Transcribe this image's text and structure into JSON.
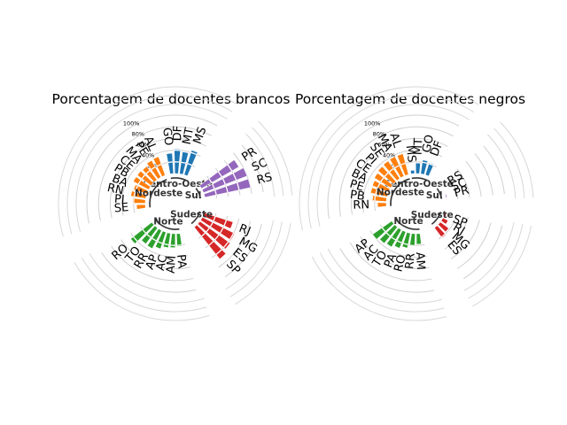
{
  "chart_data": [
    {
      "type": "bar",
      "polar": true,
      "title": "Porcentagem de docentes brancos",
      "rtick_labels": [
        "20%",
        "40%",
        "60%",
        "80%",
        "100%"
      ],
      "rlim": [
        0,
        100
      ],
      "grid": true,
      "regions": [
        {
          "name": "Centro-Oeste",
          "color": "#1f77b4",
          "states": [
            "GO",
            "DF",
            "MT",
            "MS"
          ],
          "values": [
            35,
            42,
            38,
            44
          ]
        },
        {
          "name": "Sul",
          "color": "#9467bd",
          "states": [
            "PR",
            "SC",
            "RS"
          ],
          "values": [
            74,
            80,
            80
          ]
        },
        {
          "name": "Sudeste",
          "color": "#d62728",
          "states": [
            "RJ",
            "MG",
            "ES",
            "SP"
          ],
          "values": [
            52,
            62,
            64,
            70
          ]
        },
        {
          "name": "Norte",
          "color": "#2ca02c",
          "states": [
            "PA",
            "AM",
            "AC",
            "AP",
            "RR",
            "TO",
            "RO"
          ],
          "values": [
            22,
            24,
            25,
            30,
            35,
            34,
            46
          ]
        },
        {
          "name": "Nordeste",
          "color": "#ff7f0e",
          "states": [
            "SE",
            "PI",
            "RN",
            "BA",
            "PB",
            "CE",
            "MA",
            "PE",
            "AL"
          ],
          "values": [
            15,
            22,
            26,
            24,
            30,
            30,
            29,
            33,
            34
          ]
        }
      ]
    },
    {
      "type": "bar",
      "polar": true,
      "title": "Porcentagem de docentes negros",
      "rtick_labels": [
        "20%",
        "40%",
        "60%",
        "80%",
        "100%"
      ],
      "rlim": [
        0,
        100
      ],
      "grid": true,
      "regions": [
        {
          "name": "Centro-Oeste",
          "color": "#1f77b4",
          "states": [
            "MS",
            "MT",
            "GO",
            "DF"
          ],
          "values": [
            6,
            18,
            24,
            22
          ]
        },
        {
          "name": "Sul",
          "color": "#9467bd",
          "states": [
            "RS",
            "SC",
            "PR"
          ],
          "values": [
            1,
            1,
            2
          ]
        },
        {
          "name": "Sudeste",
          "color": "#d62728",
          "states": [
            "SP",
            "RJ",
            "MG",
            "ES"
          ],
          "values": [
            3,
            10,
            18,
            22
          ]
        },
        {
          "name": "Norte",
          "color": "#2ca02c",
          "states": [
            "AM",
            "RR",
            "RO",
            "PA",
            "TO",
            "AC",
            "AP"
          ],
          "values": [
            18,
            20,
            26,
            30,
            34,
            36,
            40
          ]
        },
        {
          "name": "Nordeste",
          "color": "#ff7f0e",
          "states": [
            "RN",
            "PB",
            "PE",
            "BA",
            "CE",
            "PI",
            "SE",
            "MA",
            "AL"
          ],
          "values": [
            15,
            24,
            29,
            30,
            33,
            35,
            36,
            37,
            37
          ]
        }
      ]
    }
  ]
}
